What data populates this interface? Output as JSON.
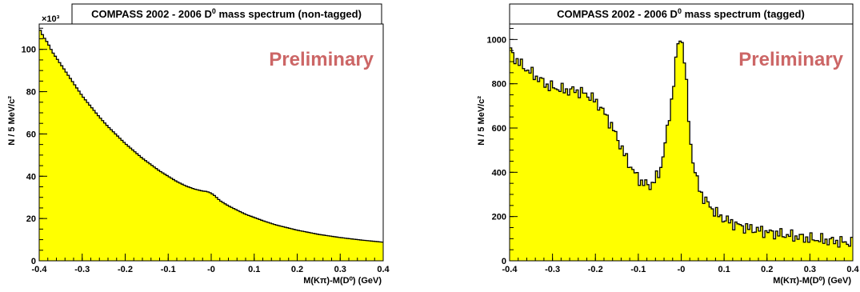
{
  "colors": {
    "fill": "#ffff00",
    "line": "#000000",
    "preliminary": "#cc6666"
  },
  "chart_data": [
    {
      "type": "area",
      "title_main": "COMPASS 2002 - 2006 D",
      "title_sup": "0",
      "title_rest": " mass spectrum (non-tagged)",
      "annotation": "Preliminary",
      "xlabel": "M(Kπ)-M(D⁰) (GeV)",
      "ylabel": "N / 5 MeV/c²",
      "y_multiplier": "×10³",
      "xlim": [
        -0.4,
        0.4
      ],
      "ylim": [
        0,
        112
      ],
      "x_ticks": [
        "-0.4",
        "-0.3",
        "-0.2",
        "-0.1",
        "-0",
        "0.1",
        "0.2",
        "0.3",
        "0.4"
      ],
      "y_ticks": [
        "0",
        "20",
        "40",
        "60",
        "80",
        "100"
      ],
      "anchors_x": [
        -0.4,
        -0.395,
        -0.39,
        -0.38,
        -0.37,
        -0.36,
        -0.35,
        -0.34,
        -0.33,
        -0.32,
        -0.31,
        -0.3,
        -0.28,
        -0.26,
        -0.24,
        -0.22,
        -0.2,
        -0.18,
        -0.16,
        -0.14,
        -0.12,
        -0.1,
        -0.08,
        -0.06,
        -0.04,
        -0.03,
        -0.02,
        -0.01,
        0.0,
        0.01,
        0.02,
        0.04,
        0.06,
        0.08,
        0.1,
        0.12,
        0.15,
        0.2,
        0.25,
        0.3,
        0.35,
        0.4
      ],
      "anchors_y": [
        110,
        108,
        106,
        103,
        99,
        96,
        93,
        90,
        87,
        84,
        81,
        78,
        73,
        68,
        63.5,
        59.5,
        55.5,
        52,
        48.5,
        45.5,
        42.5,
        40,
        37.5,
        35.5,
        34,
        33.5,
        33,
        32.8,
        32,
        30.5,
        28.5,
        26,
        24,
        22,
        20.5,
        19,
        17,
        14.5,
        12.5,
        11,
        9.8,
        8.8
      ]
    },
    {
      "type": "area",
      "title_main": "COMPASS 2002 - 2006 D",
      "title_sup": "0",
      "title_rest": " mass spectrum (tagged)",
      "annotation": "Preliminary",
      "xlabel": "M(Kπ)-M(D⁰) (GeV)",
      "ylabel": "N / 5 MeV/c²",
      "xlim": [
        -0.4,
        0.4
      ],
      "ylim": [
        0,
        1070
      ],
      "x_ticks": [
        "-0.4",
        "-0.3",
        "-0.2",
        "-0.1",
        "-0",
        "0.1",
        "0.2",
        "0.3",
        "0.4"
      ],
      "y_ticks": [
        "0",
        "200",
        "400",
        "600",
        "800",
        "1000"
      ],
      "anchors_x": [
        -0.4,
        -0.39,
        -0.37,
        -0.35,
        -0.33,
        -0.31,
        -0.29,
        -0.27,
        -0.25,
        -0.23,
        -0.21,
        -0.19,
        -0.17,
        -0.15,
        -0.13,
        -0.11,
        -0.09,
        -0.07,
        -0.05,
        -0.04,
        -0.03,
        -0.02,
        -0.015,
        -0.01,
        -0.005,
        0.0,
        0.005,
        0.01,
        0.015,
        0.02,
        0.03,
        0.04,
        0.05,
        0.07,
        0.09,
        0.12,
        0.15,
        0.2,
        0.25,
        0.3,
        0.35,
        0.4
      ],
      "anchors_y": [
        960,
        920,
        880,
        850,
        820,
        790,
        780,
        770,
        770,
        760,
        740,
        700,
        640,
        560,
        470,
        400,
        350,
        340,
        400,
        500,
        620,
        760,
        850,
        950,
        1000,
        1010,
        960,
        860,
        720,
        560,
        420,
        340,
        290,
        240,
        200,
        170,
        150,
        130,
        115,
        100,
        90,
        80
      ]
    }
  ]
}
